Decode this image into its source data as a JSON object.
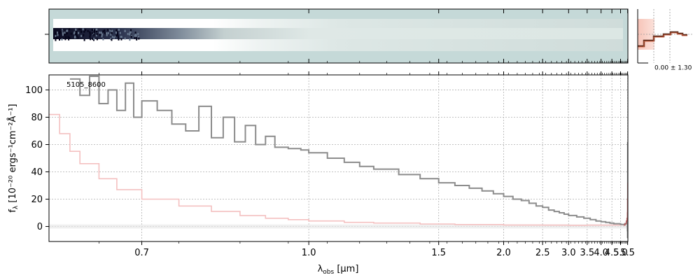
{
  "chart_data": {
    "type": "line",
    "object_label": "5105_8600",
    "xlabel": "λ",
    "xlabel_sub": "obs",
    "xlabel_unit": " [μm]",
    "ylabel": "f",
    "ylabel_sub": "λ",
    "ylabel_unit": " [10⁻²⁰ ergs⁻¹cm⁻²Å⁻¹]",
    "x_scale": "reciprocal",
    "xlim": [
      0.6,
      5.52
    ],
    "ylim": [
      -11,
      111
    ],
    "x_ticks": [
      0.7,
      1.0,
      1.5,
      2.0,
      2.5,
      3.0,
      3.5,
      4.0,
      4.5,
      5.0,
      5.5
    ],
    "x_tick_labels": [
      "0.7",
      "1.0",
      "1.5",
      "2.0",
      "2.5",
      "3.0",
      "3.5",
      "4.0",
      "4.5",
      "5.0",
      "5.5"
    ],
    "y_ticks": [
      0,
      20,
      40,
      60,
      80,
      100
    ],
    "y_tick_labels": [
      "0",
      "20",
      "40",
      "60",
      "80",
      "100"
    ],
    "grid": true,
    "colors": {
      "flux": "#8c8c8c",
      "error": "#f4c0c0",
      "model": "#b06060"
    },
    "series": [
      {
        "role": "flux",
        "x": [
          0.62,
          0.63,
          0.64,
          0.65,
          0.66,
          0.67,
          0.68,
          0.69,
          0.7,
          0.72,
          0.74,
          0.76,
          0.78,
          0.8,
          0.82,
          0.84,
          0.86,
          0.88,
          0.9,
          0.92,
          0.95,
          0.98,
          1.0,
          1.05,
          1.1,
          1.15,
          1.2,
          1.3,
          1.4,
          1.5,
          1.6,
          1.7,
          1.8,
          1.9,
          2.0,
          2.1,
          2.2,
          2.3,
          2.4,
          2.5,
          2.6,
          2.7,
          2.8,
          2.9,
          3.0,
          3.2,
          3.4,
          3.6,
          3.8,
          4.0,
          4.2,
          4.4,
          4.6,
          4.8,
          5.0,
          5.2,
          5.3,
          5.4,
          5.45,
          5.48,
          5.5,
          5.51
        ],
        "values": [
          108,
          96,
          110,
          90,
          100,
          85,
          105,
          80,
          92,
          85,
          75,
          70,
          88,
          65,
          80,
          62,
          74,
          60,
          66,
          58,
          57,
          56,
          54,
          50,
          47,
          44,
          42,
          38,
          35,
          32,
          30,
          28,
          26,
          24,
          22,
          20,
          19,
          17,
          15,
          14,
          12,
          11,
          10,
          9,
          8,
          7,
          6,
          5,
          4,
          3.5,
          3,
          2.5,
          2,
          2,
          1.5,
          1.5,
          2,
          3,
          2,
          -3,
          -8,
          62
        ]
      },
      {
        "role": "error",
        "x": [
          0.6,
          0.61,
          0.62,
          0.63,
          0.65,
          0.67,
          0.7,
          0.75,
          0.8,
          0.85,
          0.9,
          0.95,
          1.0,
          1.1,
          1.2,
          1.4,
          1.6,
          2.0,
          2.5,
          3.0,
          3.5,
          4.0,
          4.5,
          5.0,
          5.3,
          5.45,
          5.5,
          5.52
        ],
        "values": [
          82,
          68,
          55,
          46,
          35,
          27,
          20,
          15,
          11,
          8,
          6,
          5,
          4,
          3,
          2.5,
          1.8,
          1.4,
          1.1,
          1.0,
          0.9,
          1.0,
          1.0,
          1.0,
          1.2,
          2,
          4,
          12,
          30
        ]
      },
      {
        "role": "model",
        "x": [
          5.2,
          5.3,
          5.4,
          5.45,
          5.48,
          5.5,
          5.52
        ],
        "values": [
          1,
          2,
          4,
          6,
          10,
          20,
          32
        ]
      }
    ]
  },
  "inset_2d": {
    "kind": "2d-spectrum"
  },
  "inset_profile": {
    "kind": "profile",
    "label": "0.00 ± 1.30"
  }
}
